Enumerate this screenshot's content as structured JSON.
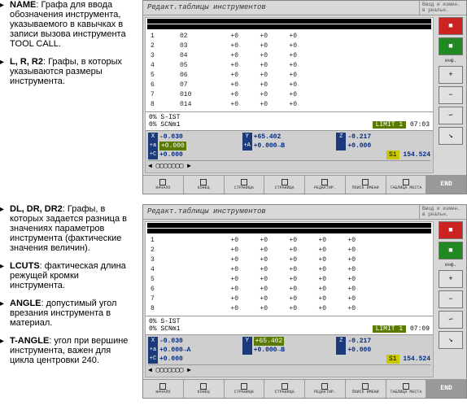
{
  "block1": {
    "items": [
      {
        "label": "NAME",
        "text": ": Графа для ввода обозначения инструмента, указываемого в кавычках в записи вызова инструмента TOOL CALL."
      },
      {
        "label": "L, R, R2",
        "text": ": Графы, в которых указываются размеры инструмента."
      }
    ]
  },
  "block2": {
    "items": [
      {
        "label": "DL, DR, DR2",
        "text": ": Графы, в которых задается разница в значениях параметров инструмента (фактические значения величин)."
      },
      {
        "label": "LCUTS",
        "text": ": фактическая длина режущей кромки инструмента."
      },
      {
        "label": "ANGLE",
        "text": ": допустимый угол врезания инструмента в материал."
      },
      {
        "label": "T-ANGLE",
        "text": ": угол при вершине инструмента, важен для цикла центровки 240."
      }
    ]
  },
  "screen1": {
    "title": "Редакт.таблицы инструментов",
    "title_right": "Ввод и измен. в реальн.",
    "table": {
      "rows": [
        [
          "1",
          "02",
          "+0",
          "+0",
          "+0"
        ],
        [
          "2",
          "03",
          "+0",
          "+0",
          "+0"
        ],
        [
          "3",
          "04",
          "+0",
          "+0",
          "+0"
        ],
        [
          "4",
          "05",
          "+0",
          "+0",
          "+0"
        ],
        [
          "5",
          "06",
          "+0",
          "+0",
          "+0"
        ],
        [
          "6",
          "07",
          "+0",
          "+0",
          "+0"
        ],
        [
          "7",
          "010",
          "+0",
          "+0",
          "+0"
        ],
        [
          "8",
          "014",
          "+0",
          "+0",
          "+0"
        ]
      ]
    },
    "status": {
      "l1_left": "0%",
      "l1_mid": "S-IST",
      "l2_left": "0%",
      "l2_mid": "SCNm1",
      "l2_limit": "LIMIT 1",
      "l2_time": "07:03"
    },
    "coords": {
      "r1": [
        {
          "l": "X",
          "v": "-0.030"
        },
        {
          "l": "Y",
          "v": "+65.402"
        },
        {
          "l": "Z",
          "v": "-0.217"
        }
      ],
      "r2": [
        {
          "l": "+a",
          "v": "+0.000",
          "hl": true
        },
        {
          "l": "+A",
          "v": "+0.000",
          "arrow": "→B"
        },
        {
          "l": "",
          "v": "+0.000"
        }
      ],
      "r3": [
        {
          "l": "+C",
          "v": "+0.000"
        },
        {
          "s1": "S1",
          "sv": "154.524"
        }
      ]
    },
    "footer": [
      "НАЧАЛО",
      "КОНЕЦ",
      "СТРАНИЦА",
      "СТРАНИЦА",
      "РЕДАКТИР.",
      "ПОИСК ИМЕНИ",
      "ТАБЛИЦА МЕСТА",
      "END"
    ]
  },
  "screen2": {
    "title": "Редакт.таблицы инструментов",
    "title_right": "Ввод и измен. в реальн.",
    "table": {
      "rows": [
        [
          "1",
          "",
          "+0",
          "+0",
          "+0",
          "+0",
          "+0"
        ],
        [
          "2",
          "",
          "+0",
          "+0",
          "+0",
          "+0",
          "+0"
        ],
        [
          "3",
          "",
          "+0",
          "+0",
          "+0",
          "+0",
          "+0"
        ],
        [
          "4",
          "",
          "+0",
          "+0",
          "+0",
          "+0",
          "+0"
        ],
        [
          "5",
          "",
          "+0",
          "+0",
          "+0",
          "+0",
          "+0"
        ],
        [
          "6",
          "",
          "+0",
          "+0",
          "+0",
          "+0",
          "+0"
        ],
        [
          "7",
          "",
          "+0",
          "+0",
          "+0",
          "+0",
          "+0"
        ],
        [
          "8",
          "",
          "+0",
          "+0",
          "+0",
          "+0",
          "+0"
        ]
      ]
    },
    "status": {
      "l1_left": "0%",
      "l1_mid": "S-IST",
      "l2_left": "0%",
      "l2_mid": "SCNm1",
      "l2_limit": "LIMIT 1",
      "l2_time": "07:09"
    },
    "coords": {
      "r1": [
        {
          "l": "X",
          "v": "-0.030"
        },
        {
          "l": "Y",
          "v": "+65.402",
          "hl": true
        },
        {
          "l": "Z",
          "v": "-0.217"
        }
      ],
      "r2": [
        {
          "l": "+a",
          "v": "+0.000",
          "arrow": "→A"
        },
        {
          "l": "",
          "v": "+0.000",
          "arrow": "→B"
        },
        {
          "l": "",
          "v": "+0.000"
        }
      ],
      "r3": [
        {
          "l": "+C",
          "v": "+0.000"
        },
        {
          "s1": "S1",
          "sv": "154.524"
        }
      ]
    },
    "footer": [
      "НАЧАЛО",
      "КОНЕЦ",
      "СТРАНИЦА",
      "СТРАНИЦА",
      "РЕДАКТИР.",
      "ПОИСК ИМЕНИ",
      "ТАБЛИЦА МЕСТА",
      "END"
    ]
  },
  "side_buttons": {
    "b1": "■",
    "b2": "■",
    "label1": "инф.",
    "plus": "+",
    "minus": "−",
    "wave": "∽",
    "arrow": "↘"
  }
}
